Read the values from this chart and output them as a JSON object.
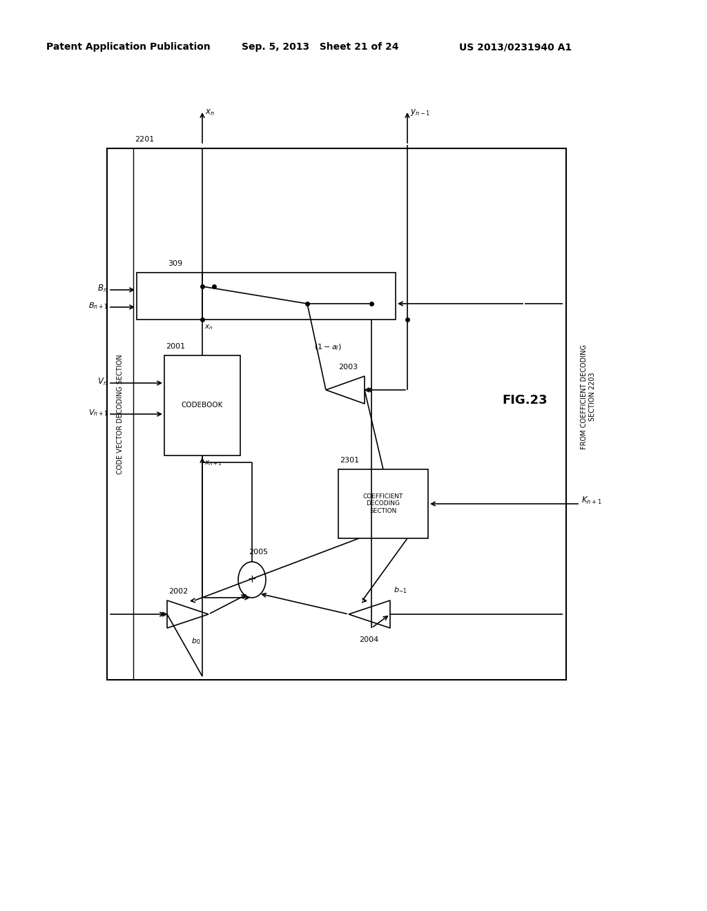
{
  "header_left": "Patent Application Publication",
  "header_mid": "Sep. 5, 2013   Sheet 21 of 24",
  "header_right": "US 2013/0231940 A1",
  "fig_label": "FIG.23",
  "bg_color": "#ffffff"
}
